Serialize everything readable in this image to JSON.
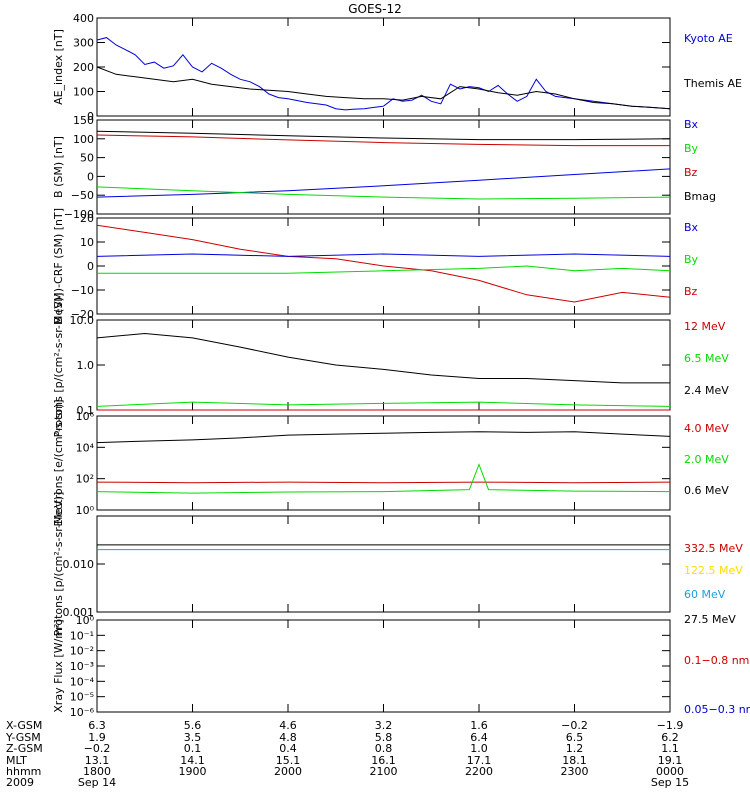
{
  "title": "GOES-12",
  "colors": {
    "black": "#000000",
    "blue": "#0000dd",
    "red": "#cc0000",
    "green": "#00dd00",
    "darkred": "#990000",
    "yellow": "#ffdd00",
    "cyan": "#1aa0e0",
    "nav": "#0000cc"
  },
  "chart_data": [
    {
      "type": "line",
      "ylabel": "AE_index [nT]",
      "scale": "linear",
      "ylim": [
        0,
        400
      ],
      "yticks": [
        0,
        100,
        200,
        300,
        400
      ],
      "ytick_labels": [
        "0",
        "100",
        "200",
        "300",
        "400"
      ],
      "legend": [
        {
          "label": "Kyoto AE",
          "color": "#0000dd"
        },
        {
          "label": "Themis AE",
          "color": "#000000"
        }
      ],
      "series": [
        {
          "name": "Kyoto AE",
          "color": "#0000dd",
          "x": [
            0,
            0.1,
            0.2,
            0.3,
            0.4,
            0.5,
            0.6,
            0.7,
            0.8,
            0.9,
            1.0,
            1.1,
            1.2,
            1.3,
            1.4,
            1.5,
            1.6,
            1.7,
            1.8,
            1.9,
            2.0,
            2.2,
            2.4,
            2.5,
            2.6,
            2.7,
            2.8,
            2.9,
            3.0,
            3.1,
            3.2,
            3.3,
            3.4,
            3.5,
            3.6,
            3.7,
            3.8,
            3.9,
            4.0,
            4.1,
            4.2,
            4.3,
            4.4,
            4.5,
            4.6,
            4.7,
            4.8,
            4.9,
            5.0,
            5.2,
            5.4,
            5.6,
            5.8,
            6.0
          ],
          "values": [
            310,
            320,
            290,
            270,
            250,
            210,
            220,
            195,
            205,
            250,
            200,
            180,
            215,
            195,
            170,
            150,
            140,
            120,
            90,
            75,
            70,
            55,
            45,
            30,
            25,
            28,
            30,
            35,
            40,
            70,
            60,
            65,
            85,
            60,
            50,
            130,
            110,
            120,
            115,
            100,
            125,
            90,
            60,
            80,
            150,
            100,
            80,
            75,
            70,
            60,
            50,
            40,
            35,
            30
          ]
        },
        {
          "name": "Themis AE",
          "color": "#000000",
          "x": [
            0,
            0.2,
            0.4,
            0.6,
            0.8,
            1.0,
            1.2,
            1.4,
            1.6,
            1.8,
            2.0,
            2.2,
            2.4,
            2.6,
            2.8,
            3.0,
            3.2,
            3.4,
            3.6,
            3.8,
            4.0,
            4.2,
            4.4,
            4.6,
            4.8,
            5.0,
            5.2,
            5.4,
            5.6,
            5.8,
            6.0
          ],
          "values": [
            200,
            170,
            160,
            150,
            140,
            150,
            130,
            120,
            110,
            105,
            100,
            90,
            80,
            75,
            70,
            70,
            65,
            80,
            70,
            120,
            110,
            95,
            85,
            100,
            90,
            70,
            55,
            50,
            40,
            35,
            30
          ]
        }
      ]
    },
    {
      "type": "line",
      "ylabel": "B (SM) [nT]",
      "scale": "linear",
      "ylim": [
        -100,
        150
      ],
      "yticks": [
        -100,
        -50,
        0,
        50,
        100,
        150
      ],
      "ytick_labels": [
        "−100",
        "−50",
        "0",
        "50",
        "100",
        "150"
      ],
      "legend": [
        {
          "label": "Bx",
          "color": "#0000dd"
        },
        {
          "label": "By",
          "color": "#00dd00"
        },
        {
          "label": "Bz",
          "color": "#cc0000"
        },
        {
          "label": "Bmag",
          "color": "#000000"
        }
      ],
      "series": [
        {
          "name": "Bmag",
          "color": "#000000",
          "x": [
            0,
            1,
            2,
            3,
            4,
            5,
            6
          ],
          "values": [
            120,
            115,
            108,
            102,
            98,
            98,
            100
          ]
        },
        {
          "name": "Bz",
          "color": "#cc0000",
          "x": [
            0,
            1,
            2,
            3,
            4,
            5,
            6
          ],
          "values": [
            110,
            105,
            97,
            90,
            85,
            82,
            82
          ]
        },
        {
          "name": "Bx",
          "color": "#0000dd",
          "x": [
            0,
            1,
            2,
            3,
            4,
            5,
            6
          ],
          "values": [
            -55,
            -48,
            -38,
            -25,
            -10,
            5,
            20
          ]
        },
        {
          "name": "By",
          "color": "#00dd00",
          "x": [
            0,
            1,
            2,
            3,
            4,
            5,
            6
          ],
          "values": [
            -28,
            -38,
            -48,
            -55,
            -60,
            -58,
            -55
          ]
        }
      ]
    },
    {
      "type": "line",
      "ylabel": "B (SM)-CRF (SM) [nT]",
      "scale": "linear",
      "ylim": [
        -20,
        20
      ],
      "yticks": [
        -20,
        -10,
        0,
        10,
        20
      ],
      "ytick_labels": [
        "−20",
        "−10",
        "0",
        "10",
        "20"
      ],
      "legend": [
        {
          "label": "Bx",
          "color": "#0000dd"
        },
        {
          "label": "By",
          "color": "#00dd00"
        },
        {
          "label": "Bz",
          "color": "#cc0000"
        }
      ],
      "series": [
        {
          "name": "Bz",
          "color": "#cc0000",
          "x": [
            0,
            0.5,
            1.0,
            1.5,
            2.0,
            2.5,
            3.0,
            3.5,
            4.0,
            4.5,
            5.0,
            5.5,
            6.0
          ],
          "values": [
            17,
            14,
            11,
            7,
            4,
            3,
            0,
            -2,
            -6,
            -12,
            -15,
            -11,
            -13
          ]
        },
        {
          "name": "Bx",
          "color": "#0000dd",
          "x": [
            0,
            1,
            2,
            3,
            4,
            5,
            6
          ],
          "values": [
            4,
            5,
            4,
            5,
            4,
            5,
            4
          ]
        },
        {
          "name": "By",
          "color": "#00dd00",
          "x": [
            0,
            1,
            2,
            3,
            4,
            4.5,
            5,
            5.5,
            6
          ],
          "values": [
            -3,
            -3,
            -3,
            -2,
            -1,
            0,
            -2,
            -1,
            -2
          ]
        }
      ]
    },
    {
      "type": "line",
      "ylabel": "Protons [p/(cm²-s-sr-MeV)]",
      "scale": "log",
      "ylim": [
        0.1,
        10
      ],
      "yticks": [
        0.1,
        1,
        10
      ],
      "ytick_labels": [
        "0.1",
        "1.0",
        "10.0"
      ],
      "legend": [
        {
          "label": "12 MeV",
          "color": "#cc0000"
        },
        {
          "label": "6.5 MeV",
          "color": "#00dd00"
        },
        {
          "label": "2.4 MeV",
          "color": "#000000"
        }
      ],
      "series": [
        {
          "name": "2.4 MeV",
          "color": "#000000",
          "x": [
            0,
            0.5,
            1.0,
            1.5,
            2.0,
            2.5,
            3.0,
            3.5,
            4.0,
            4.5,
            5.0,
            5.5,
            6.0
          ],
          "values": [
            4,
            5,
            4,
            2.5,
            1.5,
            1,
            0.8,
            0.6,
            0.5,
            0.5,
            0.45,
            0.4,
            0.4
          ]
        },
        {
          "name": "6.5 MeV",
          "color": "#00dd00",
          "x": [
            0,
            1,
            2,
            3,
            4,
            5,
            6
          ],
          "values": [
            0.12,
            0.15,
            0.13,
            0.14,
            0.15,
            0.13,
            0.12
          ]
        },
        {
          "name": "12 MeV",
          "color": "#cc0000",
          "x": [
            0,
            1,
            2,
            3,
            4,
            5,
            6
          ],
          "values": [
            0.1,
            0.1,
            0.1,
            0.1,
            0.1,
            0.1,
            0.1
          ]
        }
      ]
    },
    {
      "type": "line",
      "ylabel": "Electrons [e/(cm²-s-sr)]",
      "scale": "log",
      "ylim": [
        1,
        1000000
      ],
      "yticks": [
        1,
        100,
        10000,
        1000000
      ],
      "ytick_labels": [
        "10⁰",
        "10²",
        "10⁴",
        "10⁶"
      ],
      "legend": [
        {
          "label": "4.0 MeV",
          "color": "#cc0000"
        },
        {
          "label": "2.0 MeV",
          "color": "#00dd00"
        },
        {
          "label": "0.6 MeV",
          "color": "#000000"
        }
      ],
      "series": [
        {
          "name": "0.6 MeV",
          "color": "#000000",
          "x": [
            0,
            0.5,
            1.0,
            1.5,
            2.0,
            2.5,
            3.0,
            3.5,
            4.0,
            4.5,
            5.0,
            5.5,
            6.0
          ],
          "values": [
            20000,
            25000,
            30000,
            40000,
            60000,
            70000,
            80000,
            90000,
            100000,
            90000,
            100000,
            70000,
            50000
          ]
        },
        {
          "name": "4.0 MeV",
          "color": "#cc0000",
          "x": [
            0,
            1,
            2,
            3,
            4,
            5,
            6
          ],
          "values": [
            60,
            55,
            60,
            55,
            60,
            55,
            60
          ]
        },
        {
          "name": "2.0 MeV",
          "color": "#00dd00",
          "x": [
            0,
            1,
            2,
            3,
            3.9,
            4.0,
            4.1,
            5,
            6
          ],
          "values": [
            15,
            12,
            14,
            15,
            20,
            800,
            20,
            16,
            15
          ]
        }
      ]
    },
    {
      "type": "line",
      "ylabel": "Protons [p/(cm²-s-sr-MeV)]",
      "scale": "log",
      "ylim": [
        0.001,
        0.1
      ],
      "yticks": [
        0.001,
        0.01,
        0.1
      ],
      "ytick_labels": [
        "0.001",
        "0.010",
        ""
      ],
      "legend": [
        {
          "label": "332.5 MeV",
          "color": "#cc0000"
        },
        {
          "label": "122.5 MeV",
          "color": "#ffdd00"
        },
        {
          "label": "60 MeV",
          "color": "#1aa0e0"
        },
        {
          "label": "27.5 MeV",
          "color": "#000000"
        }
      ],
      "series": [
        {
          "name": "27.5 MeV",
          "color": "#000000",
          "x": [
            0,
            1,
            2,
            3,
            4,
            5,
            6
          ],
          "values": [
            0.025,
            0.025,
            0.025,
            0.025,
            0.025,
            0.025,
            0.025
          ]
        },
        {
          "name": "60 MeV",
          "color": "#1aa0e0",
          "x": [
            0,
            1,
            2,
            3,
            4,
            5,
            6
          ],
          "values": [
            0.02,
            0.02,
            0.02,
            0.02,
            0.02,
            0.02,
            0.02
          ]
        }
      ]
    },
    {
      "type": "line",
      "ylabel": "Xray Flux [W/m²]",
      "scale": "log",
      "ylim": [
        1e-06,
        1
      ],
      "yticks": [
        1e-06,
        1e-05,
        0.0001,
        0.001,
        0.01,
        0.1,
        1
      ],
      "ytick_labels": [
        "10⁻⁶",
        "10⁻⁵",
        "10⁻⁴",
        "10⁻³",
        "10⁻²",
        "10⁻¹",
        "10⁰"
      ],
      "legend": [
        {
          "label": "0.1−0.8 nm",
          "color": "#cc0000"
        },
        {
          "label": "0.05−0.3 nm",
          "color": "#0000cc"
        }
      ],
      "series": []
    }
  ],
  "ephemeris": {
    "labels": [
      "X-GSM",
      "Y-GSM",
      "Z-GSM",
      "MLT",
      "hhmm",
      "2009"
    ],
    "columns": [
      [
        "6.3",
        "1.9",
        "−0.2",
        "13.1",
        "1800",
        "Sep 14"
      ],
      [
        "5.6",
        "3.5",
        "0.1",
        "14.1",
        "1900",
        ""
      ],
      [
        "4.6",
        "4.8",
        "0.4",
        "15.1",
        "2000",
        ""
      ],
      [
        "3.2",
        "5.8",
        "0.8",
        "16.1",
        "2100",
        ""
      ],
      [
        "1.6",
        "6.4",
        "1.0",
        "17.1",
        "2200",
        ""
      ],
      [
        "−0.2",
        "6.5",
        "1.2",
        "18.1",
        "2300",
        ""
      ],
      [
        "−1.9",
        "6.2",
        "1.1",
        "19.1",
        "0000",
        "Sep 15"
      ]
    ]
  }
}
